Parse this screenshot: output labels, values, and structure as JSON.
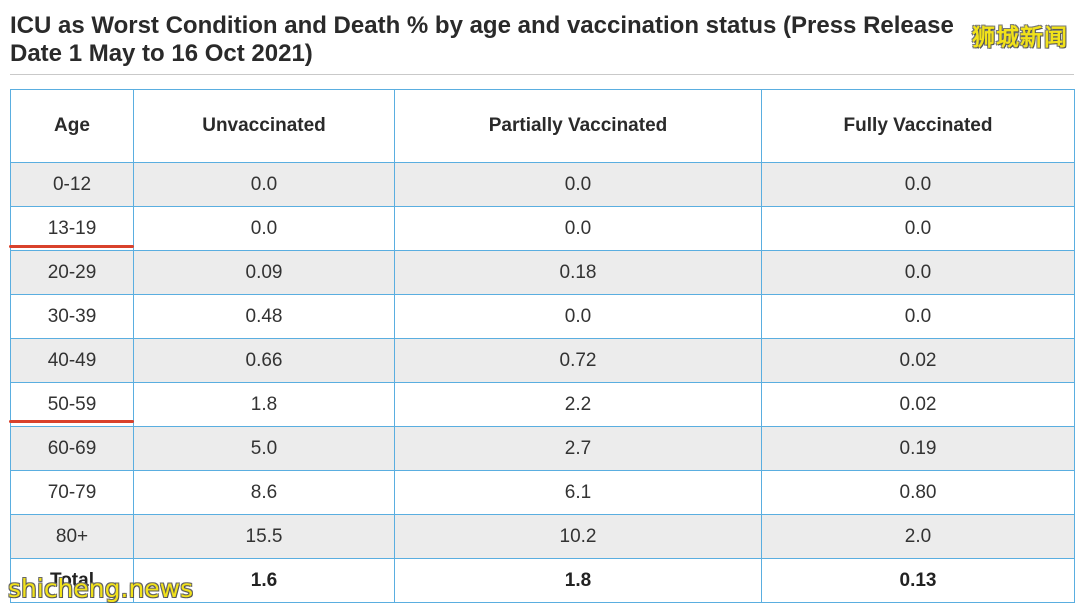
{
  "title": "ICU as Worst Condition and Death % by age and vaccination status (Press Release\nDate 1 May to 16 Oct 2021)",
  "table": {
    "headers": [
      "Age",
      "Unvaccinated",
      "Partially Vaccinated",
      "Fully Vaccinated"
    ],
    "rows": [
      [
        "0-12",
        "0.0",
        "0.0",
        "0.0"
      ],
      [
        "13-19",
        "0.0",
        "0.0",
        "0.0"
      ],
      [
        "20-29",
        "0.09",
        "0.18",
        "0.0"
      ],
      [
        "30-39",
        "0.48",
        "0.0",
        "0.0"
      ],
      [
        "40-49",
        "0.66",
        "0.72",
        "0.02"
      ],
      [
        "50-59",
        "1.8",
        "2.2",
        "0.02"
      ],
      [
        "60-69",
        "5.0",
        "2.7",
        "0.19"
      ],
      [
        "70-79",
        "8.6",
        "6.1",
        "0.80"
      ],
      [
        "80+",
        "15.5",
        "10.2",
        "2.0"
      ]
    ],
    "total": [
      "Total",
      "1.6",
      "1.8",
      "0.13"
    ]
  },
  "annotations": {
    "underlined_rows": [
      "13-19",
      "50-59"
    ],
    "underline_color": "#d9412b"
  },
  "watermarks": {
    "top_right": "狮城新闻",
    "bottom_left": "shicheng.news"
  },
  "colors": {
    "border": "#5aaee0",
    "stripe": "#ececec",
    "watermark": "#f2e21a"
  }
}
